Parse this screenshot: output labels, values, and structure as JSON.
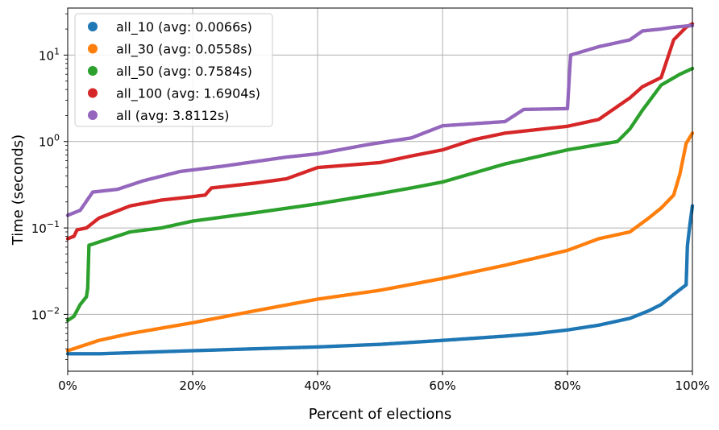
{
  "chart_data": {
    "type": "scatter",
    "title": "",
    "xlabel": "Percent of elections",
    "ylabel": "Time (seconds)",
    "x_scale": "linear",
    "y_scale": "log",
    "xlim": [
      0,
      100
    ],
    "ylim": [
      0.0022,
      35
    ],
    "grid": true,
    "legend_position": "top-left",
    "x_ticks": [
      {
        "value": 0,
        "label": "0%"
      },
      {
        "value": 20,
        "label": "20%"
      },
      {
        "value": 40,
        "label": "40%"
      },
      {
        "value": 60,
        "label": "60%"
      },
      {
        "value": 80,
        "label": "80%"
      },
      {
        "value": 100,
        "label": "100%"
      }
    ],
    "y_ticks": [
      {
        "value": 0.01,
        "base": "10",
        "exp": "−2"
      },
      {
        "value": 0.1,
        "base": "10",
        "exp": "−1"
      },
      {
        "value": 1,
        "base": "10",
        "exp": "0"
      },
      {
        "value": 10,
        "base": "10",
        "exp": "1"
      }
    ],
    "series": [
      {
        "name": "all_10 (avg: 0.0066s)",
        "color": "#1f77b4",
        "points": [
          [
            0,
            0.0035
          ],
          [
            5,
            0.0035
          ],
          [
            10,
            0.0036
          ],
          [
            20,
            0.0038
          ],
          [
            30,
            0.004
          ],
          [
            40,
            0.0042
          ],
          [
            50,
            0.0045
          ],
          [
            60,
            0.005
          ],
          [
            70,
            0.0056
          ],
          [
            75,
            0.006
          ],
          [
            80,
            0.0066
          ],
          [
            85,
            0.0075
          ],
          [
            90,
            0.009
          ],
          [
            93,
            0.011
          ],
          [
            95,
            0.013
          ],
          [
            97,
            0.017
          ],
          [
            99,
            0.022
          ],
          [
            99.2,
            0.062
          ],
          [
            99.6,
            0.11
          ],
          [
            100,
            0.18
          ]
        ]
      },
      {
        "name": "all_30 (avg: 0.0558s)",
        "color": "#ff7f0e",
        "points": [
          [
            0,
            0.0038
          ],
          [
            5,
            0.005
          ],
          [
            10,
            0.006
          ],
          [
            20,
            0.008
          ],
          [
            30,
            0.011
          ],
          [
            40,
            0.015
          ],
          [
            50,
            0.019
          ],
          [
            60,
            0.026
          ],
          [
            70,
            0.037
          ],
          [
            75,
            0.045
          ],
          [
            80,
            0.055
          ],
          [
            85,
            0.075
          ],
          [
            90,
            0.09
          ],
          [
            93,
            0.13
          ],
          [
            95,
            0.17
          ],
          [
            97,
            0.24
          ],
          [
            98,
            0.42
          ],
          [
            99,
            0.95
          ],
          [
            100,
            1.25
          ]
        ]
      },
      {
        "name": "all_50 (avg: 0.7584s)",
        "color": "#2ca02c",
        "points": [
          [
            0,
            0.0085
          ],
          [
            1,
            0.0095
          ],
          [
            2,
            0.013
          ],
          [
            3,
            0.016
          ],
          [
            3.2,
            0.02
          ],
          [
            3.4,
            0.063
          ],
          [
            10,
            0.09
          ],
          [
            15,
            0.1
          ],
          [
            20,
            0.12
          ],
          [
            30,
            0.15
          ],
          [
            40,
            0.19
          ],
          [
            50,
            0.25
          ],
          [
            55,
            0.29
          ],
          [
            60,
            0.34
          ],
          [
            70,
            0.55
          ],
          [
            80,
            0.8
          ],
          [
            88,
            1.0
          ],
          [
            90,
            1.4
          ],
          [
            92,
            2.3
          ],
          [
            95,
            4.5
          ],
          [
            98,
            6.0
          ],
          [
            100,
            7.0
          ]
        ]
      },
      {
        "name": "all_100 (avg: 1.6904s)",
        "color": "#d62728",
        "points": [
          [
            0,
            0.075
          ],
          [
            1,
            0.08
          ],
          [
            1.5,
            0.095
          ],
          [
            3,
            0.1
          ],
          [
            5,
            0.13
          ],
          [
            10,
            0.18
          ],
          [
            15,
            0.21
          ],
          [
            20,
            0.23
          ],
          [
            22,
            0.24
          ],
          [
            23,
            0.29
          ],
          [
            30,
            0.33
          ],
          [
            35,
            0.37
          ],
          [
            40,
            0.5
          ],
          [
            50,
            0.57
          ],
          [
            55,
            0.68
          ],
          [
            60,
            0.8
          ],
          [
            65,
            1.05
          ],
          [
            70,
            1.25
          ],
          [
            80,
            1.5
          ],
          [
            85,
            1.8
          ],
          [
            90,
            3.2
          ],
          [
            92,
            4.3
          ],
          [
            95,
            5.5
          ],
          [
            97,
            15.0
          ],
          [
            99,
            21.0
          ],
          [
            100,
            23.0
          ]
        ]
      },
      {
        "name": "all (avg: 3.8112s)",
        "color": "#9467bd",
        "points": [
          [
            0,
            0.14
          ],
          [
            2,
            0.16
          ],
          [
            4,
            0.26
          ],
          [
            8,
            0.28
          ],
          [
            12,
            0.35
          ],
          [
            18,
            0.45
          ],
          [
            25,
            0.52
          ],
          [
            35,
            0.66
          ],
          [
            40,
            0.72
          ],
          [
            48,
            0.92
          ],
          [
            55,
            1.1
          ],
          [
            60,
            1.52
          ],
          [
            70,
            1.7
          ],
          [
            73,
            2.35
          ],
          [
            80,
            2.4
          ],
          [
            80.5,
            10.0
          ],
          [
            85,
            12.5
          ],
          [
            90,
            15.0
          ],
          [
            92,
            19.0
          ],
          [
            95,
            20.0
          ],
          [
            97,
            21.0
          ],
          [
            100,
            22.0
          ]
        ]
      }
    ]
  }
}
